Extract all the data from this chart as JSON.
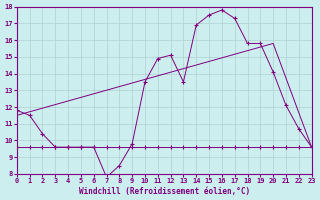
{
  "line1_x": [
    0,
    1,
    2,
    3,
    4,
    5,
    6,
    7,
    8,
    9,
    10,
    11,
    12,
    13,
    14,
    15,
    16,
    17,
    18,
    19,
    20,
    21,
    22,
    23
  ],
  "line1_y": [
    11.8,
    11.5,
    10.4,
    9.6,
    9.6,
    9.6,
    9.6,
    7.8,
    8.5,
    9.8,
    13.5,
    14.9,
    15.1,
    13.5,
    16.9,
    17.5,
    17.8,
    17.3,
    15.8,
    15.8,
    14.1,
    12.1,
    10.7,
    9.6
  ],
  "line2_x": [
    0,
    20,
    23
  ],
  "line2_y": [
    11.5,
    15.8,
    9.6
  ],
  "line3_x": [
    0,
    1,
    2,
    3,
    4,
    5,
    6,
    7,
    8,
    9,
    10,
    11,
    12,
    13,
    14,
    15,
    16,
    17,
    18,
    19,
    20,
    21,
    22,
    23
  ],
  "line3_y": [
    9.6,
    9.6,
    9.6,
    9.6,
    9.6,
    9.6,
    9.6,
    9.6,
    9.6,
    9.6,
    9.6,
    9.6,
    9.6,
    9.6,
    9.6,
    9.6,
    9.6,
    9.6,
    9.6,
    9.6,
    9.6,
    9.6,
    9.6,
    9.6
  ],
  "line_color": "#800080",
  "bg_color": "#cceeee",
  "grid_color": "#b0d0d0",
  "xlabel": "Windchill (Refroidissement éolien,°C)",
  "ylim": [
    8,
    18
  ],
  "xlim": [
    0,
    23
  ],
  "yticks": [
    8,
    9,
    10,
    11,
    12,
    13,
    14,
    15,
    16,
    17,
    18
  ],
  "xticks": [
    0,
    1,
    2,
    3,
    4,
    5,
    6,
    7,
    8,
    9,
    10,
    11,
    12,
    13,
    14,
    15,
    16,
    17,
    18,
    19,
    20,
    21,
    22,
    23
  ]
}
